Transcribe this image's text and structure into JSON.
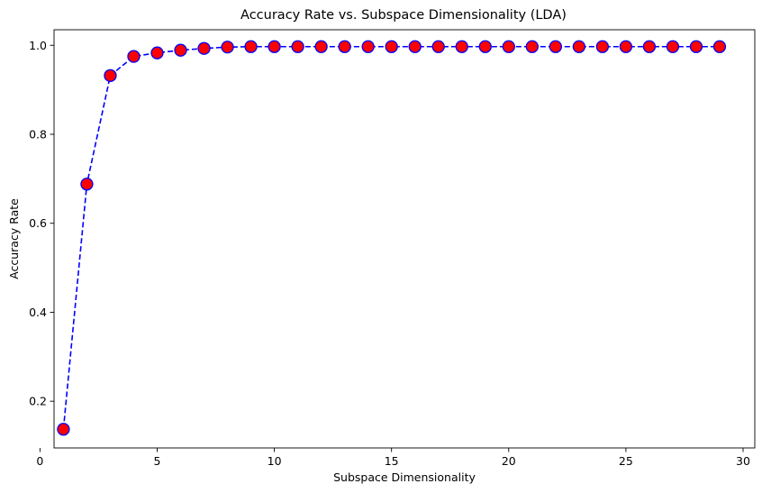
{
  "chart_data": {
    "type": "line",
    "title": "Accuracy Rate vs. Subspace Dimensionality (LDA)",
    "xlabel": "Subspace Dimensionality",
    "ylabel": "Accuracy Rate",
    "xlim": [
      0.6,
      30.5
    ],
    "ylim": [
      0.095,
      1.035
    ],
    "xticks": [
      0,
      5,
      10,
      15,
      20,
      25,
      30
    ],
    "yticks": [
      0.2,
      0.4,
      0.6,
      0.8,
      1.0
    ],
    "xtick_labels": [
      "0",
      "5",
      "10",
      "15",
      "20",
      "25",
      "30"
    ],
    "ytick_labels": [
      "0.2",
      "0.4",
      "0.6",
      "0.8",
      "1.0"
    ],
    "grid": false,
    "series": [
      {
        "line_style": "dashed",
        "line_color": "#0000ff",
        "marker": "circle",
        "marker_face_color": "#ff0000",
        "marker_edge_color": "#0000ff",
        "x": [
          1,
          2,
          3,
          4,
          5,
          6,
          7,
          8,
          9,
          10,
          11,
          12,
          13,
          14,
          15,
          16,
          17,
          18,
          19,
          20,
          21,
          22,
          23,
          24,
          25,
          26,
          27,
          28,
          29
        ],
        "y": [
          0.137,
          0.688,
          0.932,
          0.975,
          0.983,
          0.989,
          0.993,
          0.996,
          0.997,
          0.997,
          0.997,
          0.997,
          0.997,
          0.997,
          0.997,
          0.997,
          0.997,
          0.997,
          0.997,
          0.997,
          0.997,
          0.997,
          0.997,
          0.997,
          0.997,
          0.997,
          0.997,
          0.997,
          0.997
        ]
      }
    ]
  }
}
